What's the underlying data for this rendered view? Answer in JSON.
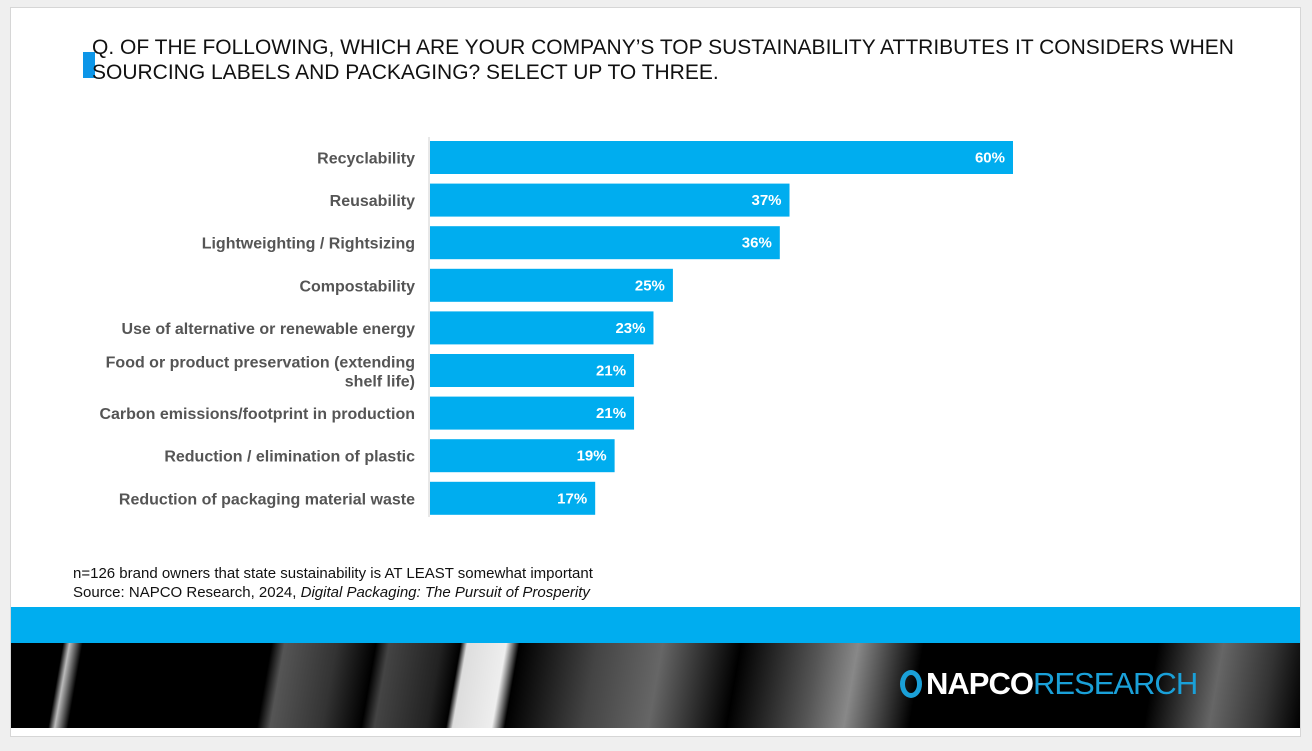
{
  "title": "Q. OF THE FOLLOWING, WHICH ARE YOUR COMPANY’S TOP SUSTAINABILITY ATTRIBUTES IT CONSIDERS WHEN SOURCING LABELS AND PACKAGING? SELECT UP TO THREE.",
  "chart_data": {
    "type": "bar",
    "orientation": "horizontal",
    "categories": [
      "Recyclability",
      "Reusability",
      "Lightweighting / Rightsizing",
      "Compostability",
      "Use of alternative or renewable energy",
      "Food or product preservation (extending shelf life)",
      "Carbon emissions/footprint in production",
      "Reduction / elimination of plastic",
      "Reduction of packaging material waste"
    ],
    "values": [
      60,
      37,
      36,
      25,
      23,
      21,
      21,
      19,
      17
    ],
    "labels": [
      "60%",
      "37%",
      "36%",
      "25%",
      "23%",
      "21%",
      "21%",
      "19%",
      "17%"
    ],
    "xlim": [
      0,
      100
    ],
    "color": "#00adef",
    "grid": false
  },
  "notes": {
    "sample": "n=126 brand owners that state sustainability is AT LEAST somewhat important",
    "source_prefix": "Source: NAPCO Research, 2024, ",
    "source_title": "Digital Packaging: The Pursuit of Prosperity"
  },
  "logo": {
    "part1": "NAPCO",
    "part2": "RESEARCH"
  }
}
